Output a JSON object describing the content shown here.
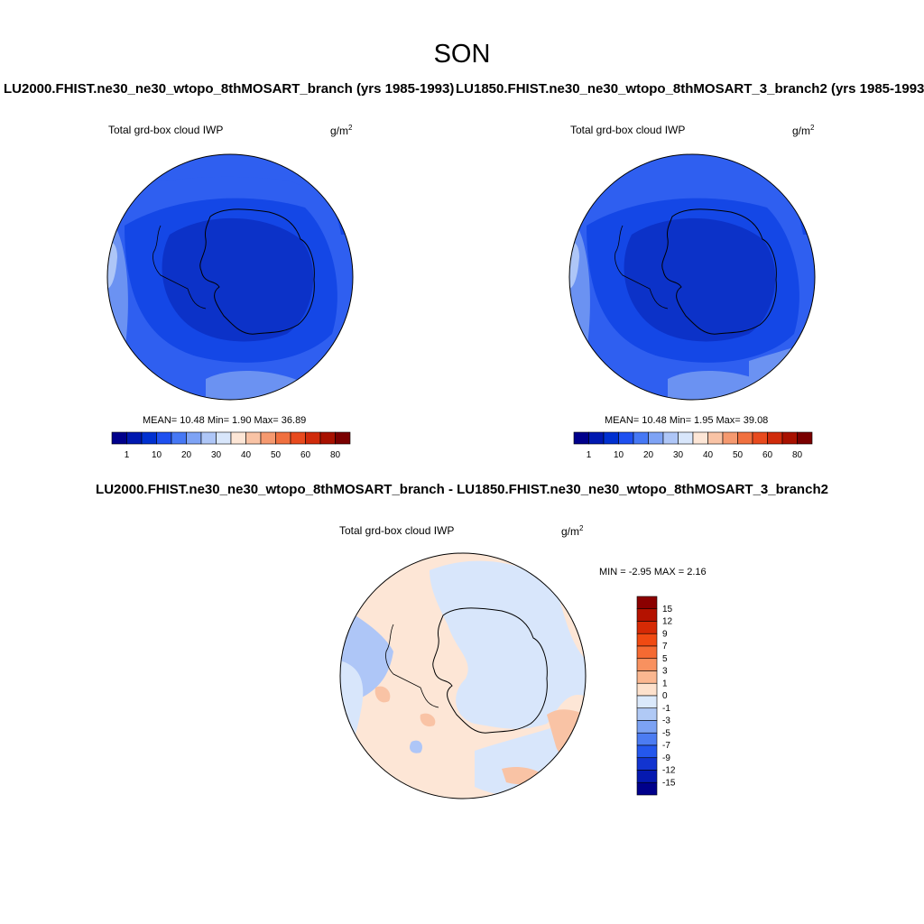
{
  "season": "SON",
  "panels": [
    {
      "title": "LU2000.FHIST.ne30_ne30_wtopo_8thMOSART_branch (yrs 1985-1993)",
      "var_label": "Total grd-box cloud IWP",
      "units": "g/m",
      "units_sup": "2",
      "stats": "MEAN=  10.48  Min=   1.90  Max=  36.89"
    },
    {
      "title": "LU1850.FHIST.ne30_ne30_wtopo_8thMOSART_3_branch2 (yrs 1985-1993)",
      "var_label": "Total grd-box cloud IWP",
      "units": "g/m",
      "units_sup": "2",
      "stats": "MEAN=  10.48  Min=   1.95  Max=  39.08"
    }
  ],
  "diff": {
    "title": "LU2000.FHIST.ne30_ne30_wtopo_8thMOSART_branch - LU1850.FHIST.ne30_ne30_wtopo_8thMOSART_3_branch2",
    "var_label": "Total grd-box cloud IWP",
    "units": "g/m",
    "units_sup": "2",
    "stats": "MIN =  -2.95 MAX =   2.16"
  },
  "colorbar_main": {
    "labels": [
      "1",
      "10",
      "20",
      "30",
      "40",
      "50",
      "60",
      "80"
    ],
    "colors": [
      "#00008b",
      "#0018b0",
      "#0030d0",
      "#1e50f0",
      "#4678f5",
      "#7ea3f5",
      "#aec6f7",
      "#d8e6fb",
      "#fde6d6",
      "#f9c3a5",
      "#f5996f",
      "#f0703f",
      "#e84a1e",
      "#d02b0b",
      "#a81100",
      "#7a0000"
    ]
  },
  "colorbar_diff": {
    "labels": [
      "15",
      "12",
      "9",
      "7",
      "5",
      "3",
      "1",
      "0",
      "-1",
      "-3",
      "-5",
      "-7",
      "-9",
      "-12",
      "-15"
    ],
    "colors": [
      "#8b0000",
      "#b41200",
      "#d62a05",
      "#f04a12",
      "#f56a32",
      "#f8915f",
      "#fbb790",
      "#fde1cc",
      "#dbe9fb",
      "#b0c9f5",
      "#7ca2f3",
      "#4c7cf2",
      "#2457ed",
      "#1234d0",
      "#0519b0",
      "#00008b"
    ]
  },
  "map_colors": {
    "level_2_10": "#1447e6",
    "level_10_20": "#2f5ff0",
    "level_20_30": "#6b92f2",
    "level_1_2": "#0c32c8",
    "diff_pos": "#fde6d6",
    "diff_neg": "#d8e6fb",
    "diff_neg2": "#aec6f7",
    "diff_pos2": "#f9c3a5"
  }
}
